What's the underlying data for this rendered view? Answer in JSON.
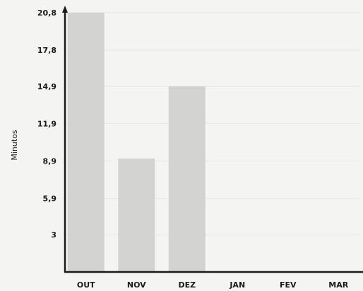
{
  "chart_data": {
    "type": "bar",
    "categories": [
      "OUT",
      "NOV",
      "DEZ",
      "JAN",
      "FEV",
      "MAR"
    ],
    "values": [
      20.8,
      9.1,
      14.9,
      null,
      null,
      null
    ],
    "ylabel": "Minutos",
    "yticks": [
      "20,8",
      "17,8",
      "14,9",
      "11,9",
      "8,9",
      "5,9",
      "3"
    ],
    "ytick_values": [
      20.8,
      17.8,
      14.9,
      11.9,
      8.9,
      5.9,
      3
    ],
    "ylim": [
      0,
      20.8
    ],
    "grid": true,
    "colors": {
      "bar": "#d3d3d1",
      "axis": "#1a1a1a",
      "background": "#f4f4f2"
    }
  }
}
